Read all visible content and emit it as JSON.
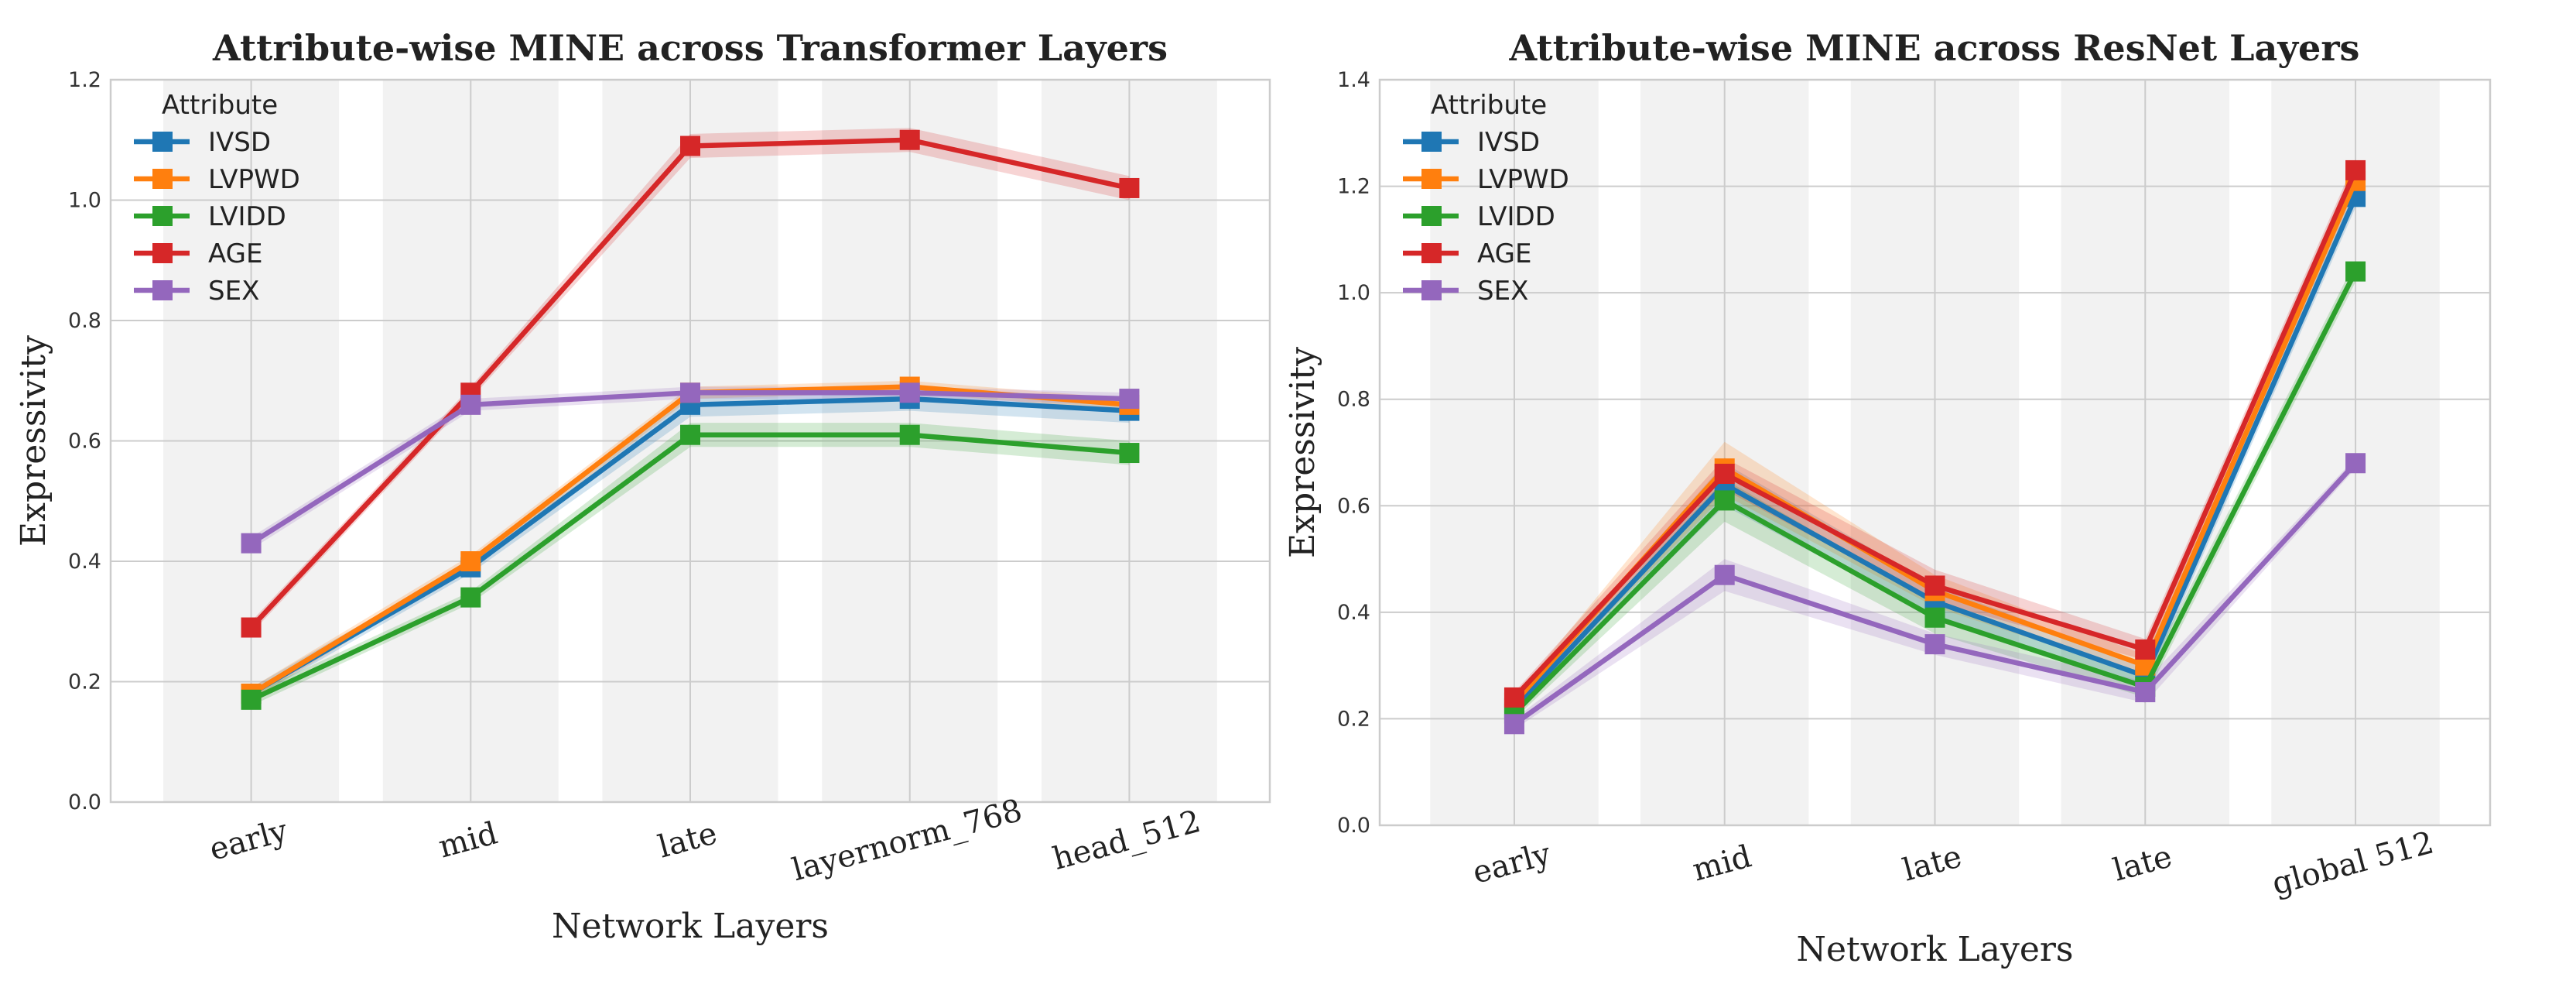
{
  "colors": {
    "IVSD": "#1f77b4",
    "LVPWD": "#ff7f0e",
    "LVIDD": "#2ca02c",
    "AGE": "#d62728",
    "SEX": "#9467bd",
    "band_fill": "#f2f2f2",
    "grid": "#cccccc",
    "frame": "#cccccc"
  },
  "chart_data": [
    {
      "type": "line",
      "title": "Attribute-wise MINE across Transformer Layers",
      "xlabel": "Network Layers",
      "ylabel": "Expressivity",
      "categories": [
        "early",
        "mid",
        "late",
        "layernorm_768",
        "head_512"
      ],
      "ylim": [
        0.0,
        1.2
      ],
      "yticks": [
        "0.0",
        "0.2",
        "0.4",
        "0.6",
        "0.8",
        "1.0",
        "1.2"
      ],
      "grid": true,
      "legend_title": "Attribute",
      "legend_position": "upper-left",
      "series": [
        {
          "name": "IVSD",
          "values": [
            0.18,
            0.39,
            0.66,
            0.67,
            0.65
          ],
          "err": [
            0.01,
            0.01,
            0.02,
            0.02,
            0.02
          ]
        },
        {
          "name": "LVPWD",
          "values": [
            0.18,
            0.4,
            0.68,
            0.69,
            0.66
          ],
          "err": [
            0.01,
            0.01,
            0.01,
            0.01,
            0.01
          ]
        },
        {
          "name": "LVIDD",
          "values": [
            0.17,
            0.34,
            0.61,
            0.61,
            0.58
          ],
          "err": [
            0.01,
            0.01,
            0.02,
            0.02,
            0.02
          ]
        },
        {
          "name": "AGE",
          "values": [
            0.29,
            0.68,
            1.09,
            1.1,
            1.02
          ],
          "err": [
            0.01,
            0.01,
            0.02,
            0.02,
            0.02
          ]
        },
        {
          "name": "SEX",
          "values": [
            0.43,
            0.66,
            0.68,
            0.68,
            0.67
          ],
          "err": [
            0.01,
            0.01,
            0.01,
            0.01,
            0.01
          ]
        }
      ]
    },
    {
      "type": "line",
      "title": "Attribute-wise MINE across ResNet Layers",
      "xlabel": "Network Layers",
      "ylabel": "Expressivity",
      "categories": [
        "early",
        "mid",
        "late",
        "late",
        "global 512"
      ],
      "ylim": [
        0.0,
        1.4
      ],
      "yticks": [
        "0.0",
        "0.2",
        "0.4",
        "0.6",
        "0.8",
        "1.0",
        "1.2",
        "1.4"
      ],
      "grid": true,
      "legend_title": "Attribute",
      "legend_position": "upper-left",
      "series": [
        {
          "name": "IVSD",
          "values": [
            0.22,
            0.64,
            0.42,
            0.28,
            1.18
          ],
          "err": [
            0.01,
            0.04,
            0.03,
            0.02,
            0.02
          ]
        },
        {
          "name": "LVPWD",
          "values": [
            0.23,
            0.67,
            0.44,
            0.3,
            1.21
          ],
          "err": [
            0.01,
            0.05,
            0.03,
            0.02,
            0.02
          ]
        },
        {
          "name": "LVIDD",
          "values": [
            0.21,
            0.61,
            0.39,
            0.26,
            1.04
          ],
          "err": [
            0.01,
            0.04,
            0.03,
            0.02,
            0.02
          ]
        },
        {
          "name": "AGE",
          "values": [
            0.24,
            0.66,
            0.45,
            0.33,
            1.23
          ],
          "err": [
            0.01,
            0.03,
            0.03,
            0.02,
            0.02
          ]
        },
        {
          "name": "SEX",
          "values": [
            0.19,
            0.47,
            0.34,
            0.25,
            0.68
          ],
          "err": [
            0.01,
            0.03,
            0.02,
            0.02,
            0.01
          ]
        }
      ]
    }
  ]
}
